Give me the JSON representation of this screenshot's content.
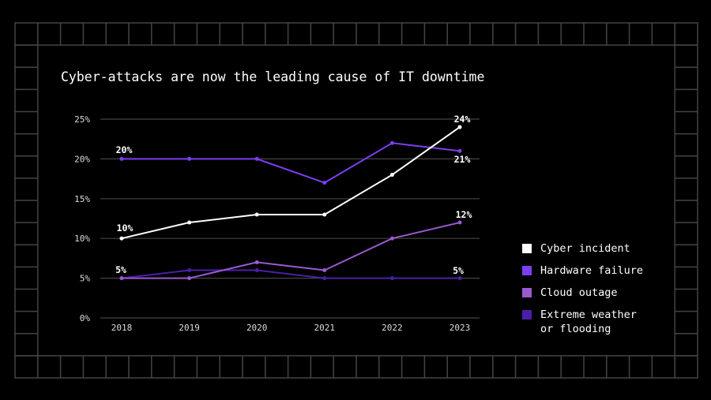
{
  "chart_data": {
    "type": "line",
    "title": "Cyber-attacks are now the leading cause of IT downtime",
    "categories": [
      "2018",
      "2019",
      "2020",
      "2021",
      "2022",
      "2023"
    ],
    "ylim": [
      0,
      25
    ],
    "yticks": [
      "0%",
      "5%",
      "10%",
      "15%",
      "20%",
      "25%"
    ],
    "grid": true,
    "legend_position": "right",
    "series": [
      {
        "name": "Cyber incident",
        "color": "#ffffff",
        "values": [
          10,
          12,
          13,
          13,
          18,
          24
        ],
        "labels": {
          "0": "10%",
          "5": "24%"
        }
      },
      {
        "name": "Hardware failure",
        "color": "#7b3ff2",
        "values": [
          20,
          20,
          20,
          17,
          22,
          21
        ],
        "labels": {
          "0": "20%",
          "5": "21%"
        }
      },
      {
        "name": "Cloud outage",
        "color": "#9b59d0",
        "values": [
          5,
          5,
          7,
          6,
          10,
          12
        ],
        "labels": {
          "5": "12%"
        }
      },
      {
        "name": "Extreme weather\nor flooding",
        "color": "#4a1fa8",
        "values": [
          5,
          6,
          6,
          5,
          5,
          5
        ],
        "labels": {
          "0": "5%",
          "5": "5%"
        }
      }
    ]
  }
}
